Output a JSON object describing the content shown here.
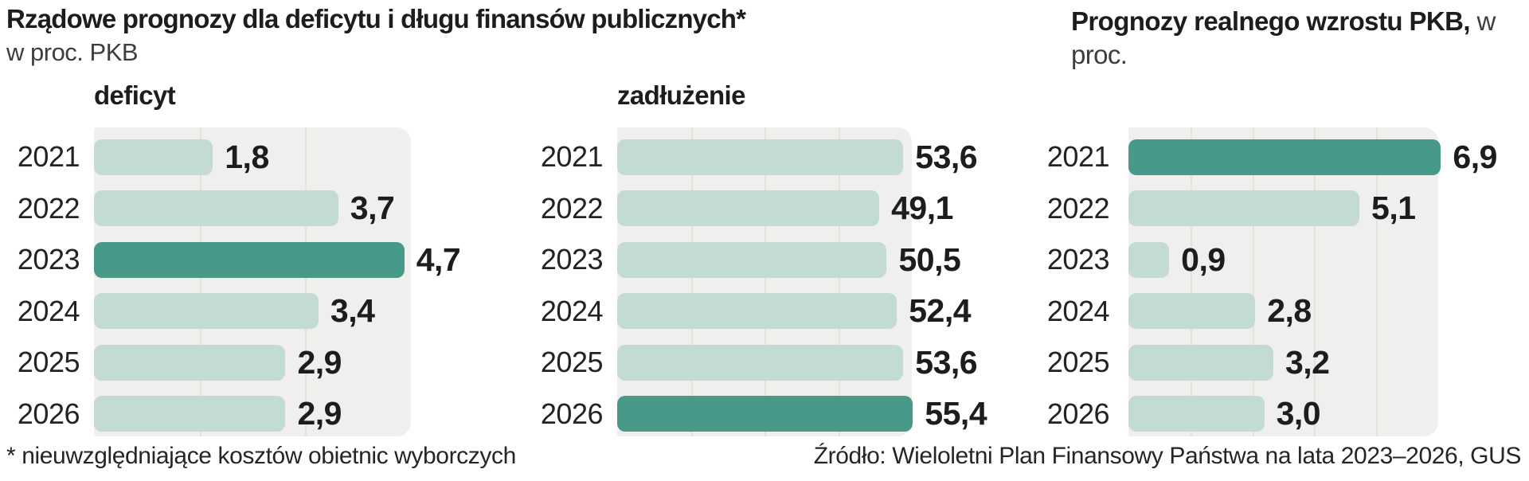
{
  "header": {
    "title": "Rządowe prognozy dla deficytu i długu finansów publicznych*",
    "subtitle": "w proc. PKB",
    "right_title_bold": "Prognozy realnego wzrostu PKB,",
    "right_title_regular": " w proc."
  },
  "footer": {
    "footnote": "* nieuwzględniające kosztów obietnic wyborczych",
    "source": "Źródło: Wieloletni Plan Finansowy Państwa na lata 2023–2026, GUS"
  },
  "colors": {
    "bar_light": "#c3dbd2",
    "bar_dark": "#479a89",
    "plot_bg": "#efefed",
    "gridline": "#e2e2df",
    "text": "#1d1d1e"
  },
  "chart_data": [
    {
      "type": "bar",
      "orientation": "horizontal",
      "title": "deficyt",
      "categories": [
        "2021",
        "2022",
        "2023",
        "2024",
        "2025",
        "2026"
      ],
      "values": [
        1.8,
        3.7,
        4.7,
        3.4,
        2.9,
        2.9
      ],
      "value_labels": [
        "1,8",
        "3,7",
        "4,7",
        "3,4",
        "2,9",
        "2,9"
      ],
      "highlight_index": 2,
      "axis_max": 4.8,
      "grid_divisions": 3,
      "legend": "none",
      "grid": "vertical"
    },
    {
      "type": "bar",
      "orientation": "horizontal",
      "title": "zadłużenie",
      "categories": [
        "2021",
        "2022",
        "2023",
        "2024",
        "2025",
        "2026"
      ],
      "values": [
        53.6,
        49.1,
        50.5,
        52.4,
        53.6,
        55.4
      ],
      "value_labels": [
        "53,6",
        "49,1",
        "50,5",
        "52,4",
        "53,6",
        "55,4"
      ],
      "highlight_index": 5,
      "axis_max": 55.2,
      "grid_divisions": 4,
      "legend": "none",
      "grid": "vertical"
    },
    {
      "type": "bar",
      "orientation": "horizontal",
      "title": "",
      "categories": [
        "2021",
        "2022",
        "2023",
        "2024",
        "2025",
        "2026"
      ],
      "values": [
        6.9,
        5.1,
        0.9,
        2.8,
        3.2,
        3.0
      ],
      "value_labels": [
        "6,9",
        "5,1",
        "0,9",
        "2,8",
        "3,2",
        "3,0"
      ],
      "highlight_index": 0,
      "axis_max": 6.84,
      "grid_divisions": 5,
      "legend": "none",
      "grid": "vertical"
    }
  ]
}
